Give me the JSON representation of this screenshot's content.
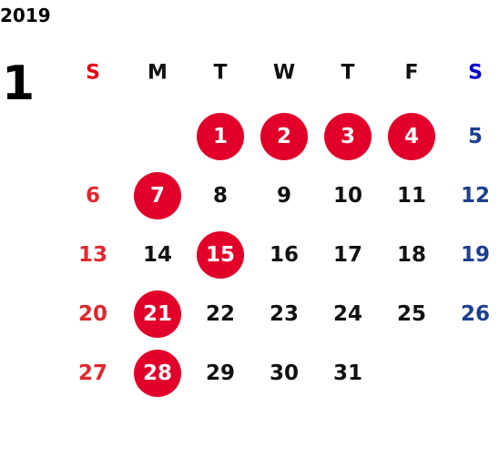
{
  "year": "2019",
  "month": "1",
  "weekdays": [
    "S",
    "M",
    "T",
    "W",
    "T",
    "F",
    "S"
  ],
  "weeks": [
    [
      null,
      null,
      {
        "day": "1",
        "marked": true
      },
      {
        "day": "2",
        "marked": true
      },
      {
        "day": "3",
        "marked": true
      },
      {
        "day": "4",
        "marked": true
      },
      {
        "day": "5",
        "marked": false
      }
    ],
    [
      {
        "day": "6",
        "marked": false
      },
      {
        "day": "7",
        "marked": true
      },
      {
        "day": "8",
        "marked": false
      },
      {
        "day": "9",
        "marked": false
      },
      {
        "day": "10",
        "marked": false
      },
      {
        "day": "11",
        "marked": false
      },
      {
        "day": "12",
        "marked": false
      }
    ],
    [
      {
        "day": "13",
        "marked": false
      },
      {
        "day": "14",
        "marked": false
      },
      {
        "day": "15",
        "marked": true
      },
      {
        "day": "16",
        "marked": false
      },
      {
        "day": "17",
        "marked": false
      },
      {
        "day": "18",
        "marked": false
      },
      {
        "day": "19",
        "marked": false
      }
    ],
    [
      {
        "day": "20",
        "marked": false
      },
      {
        "day": "21",
        "marked": true
      },
      {
        "day": "22",
        "marked": false
      },
      {
        "day": "23",
        "marked": false
      },
      {
        "day": "24",
        "marked": false
      },
      {
        "day": "25",
        "marked": false
      },
      {
        "day": "26",
        "marked": false
      }
    ],
    [
      {
        "day": "27",
        "marked": false
      },
      {
        "day": "28",
        "marked": true
      },
      {
        "day": "29",
        "marked": false
      },
      {
        "day": "30",
        "marked": false
      },
      {
        "day": "31",
        "marked": false
      },
      null,
      null
    ]
  ]
}
